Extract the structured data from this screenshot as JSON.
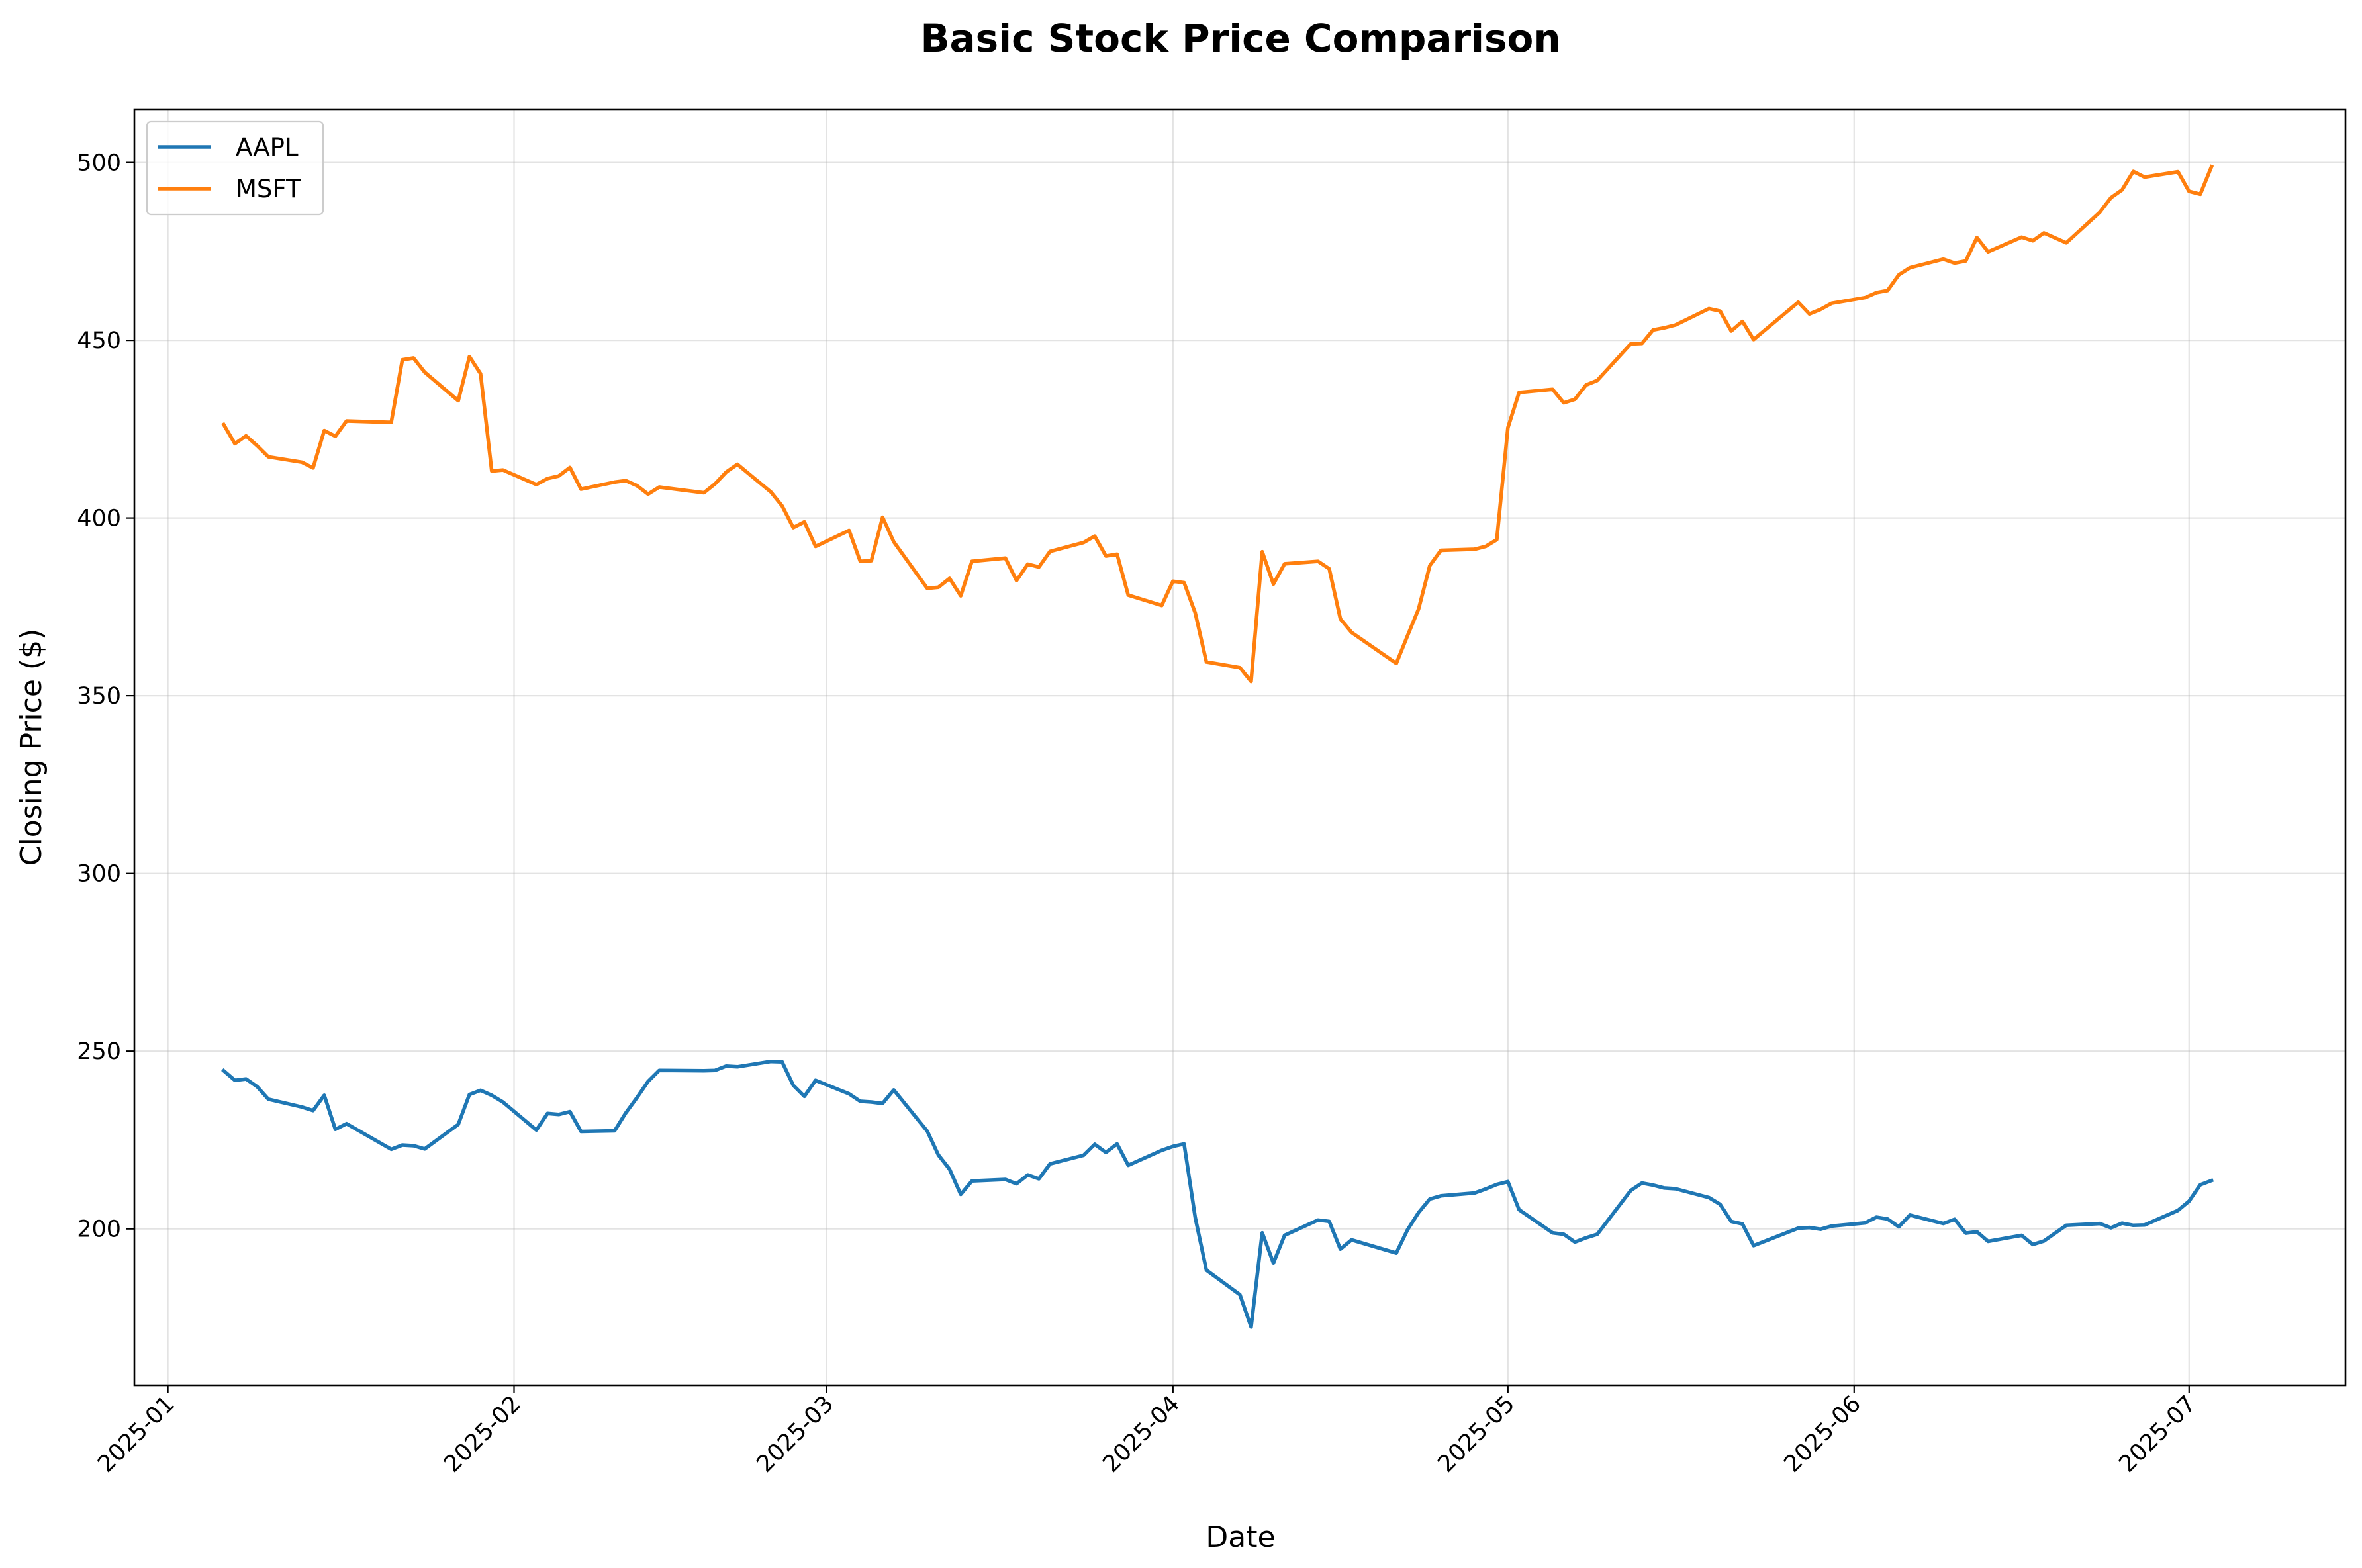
{
  "chart_data": {
    "type": "line",
    "title": "Basic Stock Price Comparison",
    "xlabel": "Date",
    "ylabel": "Closing Price ($)",
    "xlim": [
      "2024-12-29",
      "2025-07-15"
    ],
    "ylim": [
      156,
      515
    ],
    "x_ticks": [
      "2025-01-01",
      "2025-02-01",
      "2025-03-01",
      "2025-04-01",
      "2025-05-01",
      "2025-06-01",
      "2025-07-01"
    ],
    "x_tick_labels": [
      "2025-01",
      "2025-02",
      "2025-03",
      "2025-04",
      "2025-05",
      "2025-06",
      "2025-07"
    ],
    "y_ticks": [
      200,
      250,
      300,
      350,
      400,
      450,
      500
    ],
    "y_tick_labels": [
      "200",
      "250",
      "300",
      "350",
      "400",
      "450",
      "500"
    ],
    "grid": true,
    "legend": "upper-left",
    "series": [
      {
        "name": "AAPL",
        "color": "#1f77b4",
        "x": [
          "2025-01-06",
          "2025-01-07",
          "2025-01-08",
          "2025-01-09",
          "2025-01-10",
          "2025-01-13",
          "2025-01-14",
          "2025-01-15",
          "2025-01-16",
          "2025-01-17",
          "2025-01-21",
          "2025-01-22",
          "2025-01-23",
          "2025-01-24",
          "2025-01-27",
          "2025-01-28",
          "2025-01-29",
          "2025-01-30",
          "2025-01-31",
          "2025-02-03",
          "2025-02-04",
          "2025-02-05",
          "2025-02-06",
          "2025-02-07",
          "2025-02-10",
          "2025-02-11",
          "2025-02-12",
          "2025-02-13",
          "2025-02-14",
          "2025-02-18",
          "2025-02-19",
          "2025-02-20",
          "2025-02-21",
          "2025-02-24",
          "2025-02-25",
          "2025-02-26",
          "2025-02-27",
          "2025-02-28",
          "2025-03-03",
          "2025-03-04",
          "2025-03-05",
          "2025-03-06",
          "2025-03-07",
          "2025-03-10",
          "2025-03-11",
          "2025-03-12",
          "2025-03-13",
          "2025-03-14",
          "2025-03-17",
          "2025-03-18",
          "2025-03-19",
          "2025-03-20",
          "2025-03-21",
          "2025-03-24",
          "2025-03-25",
          "2025-03-26",
          "2025-03-27",
          "2025-03-28",
          "2025-03-31",
          "2025-04-01",
          "2025-04-02",
          "2025-04-03",
          "2025-04-04",
          "2025-04-07",
          "2025-04-08",
          "2025-04-09",
          "2025-04-10",
          "2025-04-11",
          "2025-04-14",
          "2025-04-15",
          "2025-04-16",
          "2025-04-17",
          "2025-04-21",
          "2025-04-22",
          "2025-04-23",
          "2025-04-24",
          "2025-04-25",
          "2025-04-28",
          "2025-04-29",
          "2025-04-30",
          "2025-05-01",
          "2025-05-02",
          "2025-05-05",
          "2025-05-06",
          "2025-05-07",
          "2025-05-08",
          "2025-05-09",
          "2025-05-12",
          "2025-05-13",
          "2025-05-14",
          "2025-05-15",
          "2025-05-16",
          "2025-05-19",
          "2025-05-20",
          "2025-05-21",
          "2025-05-22",
          "2025-05-23",
          "2025-05-27",
          "2025-05-28",
          "2025-05-29",
          "2025-05-30",
          "2025-06-02",
          "2025-06-03",
          "2025-06-04",
          "2025-06-05",
          "2025-06-06",
          "2025-06-09",
          "2025-06-10",
          "2025-06-11",
          "2025-06-12",
          "2025-06-13",
          "2025-06-16",
          "2025-06-17",
          "2025-06-18",
          "2025-06-20",
          "2025-06-23",
          "2025-06-24",
          "2025-06-25",
          "2025-06-26",
          "2025-06-27",
          "2025-06-30",
          "2025-07-01",
          "2025-07-02",
          "2025-07-03"
        ],
        "y": [
          244.5,
          241.8,
          242.2,
          240.0,
          236.5,
          234.3,
          233.3,
          237.6,
          228.0,
          229.6,
          222.4,
          223.6,
          223.4,
          222.5,
          229.4,
          237.8,
          239.0,
          237.6,
          235.7,
          227.8,
          232.5,
          232.2,
          233.0,
          227.4,
          227.6,
          232.6,
          236.9,
          241.5,
          244.6,
          244.5,
          244.6,
          245.8,
          245.6,
          247.1,
          247.0,
          240.4,
          237.3,
          241.8,
          238.0,
          235.9,
          235.7,
          235.3,
          239.1,
          227.5,
          220.8,
          216.8,
          209.7,
          213.5,
          213.9,
          212.7,
          215.2,
          214.1,
          218.3,
          220.7,
          223.8,
          221.5,
          223.9,
          217.9,
          222.1,
          223.2,
          223.9,
          203.2,
          188.4,
          181.5,
          172.4,
          198.9,
          190.4,
          198.2,
          202.5,
          202.1,
          194.3,
          196.9,
          193.2,
          199.7,
          204.6,
          208.4,
          209.3,
          210.1,
          211.2,
          212.5,
          213.3,
          205.4,
          198.9,
          198.5,
          196.3,
          197.5,
          198.5,
          210.8,
          212.9,
          212.3,
          211.5,
          211.3,
          208.8,
          206.9,
          202.1,
          201.4,
          195.3,
          200.2,
          200.4,
          199.9,
          200.8,
          201.7,
          203.3,
          202.8,
          200.6,
          203.9,
          201.5,
          202.7,
          198.8,
          199.2,
          196.5,
          198.2,
          195.6,
          196.6,
          201.0,
          201.5,
          200.3,
          201.6,
          201.0,
          201.1,
          205.2,
          207.8,
          212.4,
          213.6
        ]
      },
      {
        "name": "MSFT",
        "color": "#ff7f0e",
        "x": [
          "2025-01-06",
          "2025-01-07",
          "2025-01-08",
          "2025-01-09",
          "2025-01-10",
          "2025-01-13",
          "2025-01-14",
          "2025-01-15",
          "2025-01-16",
          "2025-01-17",
          "2025-01-21",
          "2025-01-22",
          "2025-01-23",
          "2025-01-24",
          "2025-01-27",
          "2025-01-28",
          "2025-01-29",
          "2025-01-30",
          "2025-01-31",
          "2025-02-03",
          "2025-02-04",
          "2025-02-05",
          "2025-02-06",
          "2025-02-07",
          "2025-02-10",
          "2025-02-11",
          "2025-02-12",
          "2025-02-13",
          "2025-02-14",
          "2025-02-18",
          "2025-02-19",
          "2025-02-20",
          "2025-02-21",
          "2025-02-24",
          "2025-02-25",
          "2025-02-26",
          "2025-02-27",
          "2025-02-28",
          "2025-03-03",
          "2025-03-04",
          "2025-03-05",
          "2025-03-06",
          "2025-03-07",
          "2025-03-10",
          "2025-03-11",
          "2025-03-12",
          "2025-03-13",
          "2025-03-14",
          "2025-03-17",
          "2025-03-18",
          "2025-03-19",
          "2025-03-20",
          "2025-03-21",
          "2025-03-24",
          "2025-03-25",
          "2025-03-26",
          "2025-03-27",
          "2025-03-28",
          "2025-03-31",
          "2025-04-01",
          "2025-04-02",
          "2025-04-03",
          "2025-04-04",
          "2025-04-07",
          "2025-04-08",
          "2025-04-09",
          "2025-04-10",
          "2025-04-11",
          "2025-04-14",
          "2025-04-15",
          "2025-04-16",
          "2025-04-17",
          "2025-04-21",
          "2025-04-22",
          "2025-04-23",
          "2025-04-24",
          "2025-04-25",
          "2025-04-28",
          "2025-04-29",
          "2025-04-30",
          "2025-05-01",
          "2025-05-02",
          "2025-05-05",
          "2025-05-06",
          "2025-05-07",
          "2025-05-08",
          "2025-05-09",
          "2025-05-12",
          "2025-05-13",
          "2025-05-14",
          "2025-05-15",
          "2025-05-16",
          "2025-05-19",
          "2025-05-20",
          "2025-05-21",
          "2025-05-22",
          "2025-05-23",
          "2025-05-27",
          "2025-05-28",
          "2025-05-29",
          "2025-05-30",
          "2025-06-02",
          "2025-06-03",
          "2025-06-04",
          "2025-06-05",
          "2025-06-06",
          "2025-06-09",
          "2025-06-10",
          "2025-06-11",
          "2025-06-12",
          "2025-06-13",
          "2025-06-16",
          "2025-06-17",
          "2025-06-18",
          "2025-06-20",
          "2025-06-23",
          "2025-06-24",
          "2025-06-25",
          "2025-06-26",
          "2025-06-27",
          "2025-06-30",
          "2025-07-01",
          "2025-07-02",
          "2025-07-03"
        ],
        "y": [
          426.3,
          420.9,
          423.1,
          420.3,
          417.2,
          415.7,
          414.1,
          424.6,
          423.0,
          427.3,
          426.9,
          444.5,
          445.0,
          441.0,
          433.0,
          445.4,
          440.6,
          413.2,
          413.5,
          409.4,
          411.1,
          411.8,
          414.2,
          408.1,
          410.1,
          410.5,
          409.1,
          406.7,
          408.7,
          407.1,
          409.6,
          412.9,
          415.1,
          407.3,
          403.4,
          397.3,
          398.9,
          392.0,
          396.5,
          387.8,
          388.0,
          400.2,
          393.3,
          380.2,
          380.5,
          383.0,
          378.1,
          387.8,
          388.7,
          382.4,
          387.0,
          386.2,
          390.6,
          393.1,
          394.9,
          389.3,
          389.8,
          378.3,
          375.4,
          382.2,
          381.8,
          373.3,
          359.5,
          357.9,
          354.0,
          390.5,
          381.4,
          387.1,
          387.8,
          385.7,
          371.6,
          367.8,
          359.1,
          366.8,
          374.4,
          386.6,
          390.9,
          391.2,
          392.0,
          393.9,
          425.4,
          435.3,
          436.2,
          432.4,
          433.4,
          437.4,
          438.7,
          449.0,
          449.1,
          452.9,
          453.5,
          454.3,
          458.9,
          458.2,
          452.6,
          455.3,
          450.2,
          460.7,
          457.4,
          458.7,
          460.4,
          462.0,
          463.4,
          464.0,
          468.4,
          470.4,
          472.8,
          471.7,
          472.3,
          478.9,
          474.9,
          479.0,
          478.0,
          480.2,
          477.4,
          486.0,
          490.1,
          492.3,
          497.5,
          495.9,
          497.4,
          491.9,
          491.1,
          498.8
        ]
      }
    ]
  }
}
